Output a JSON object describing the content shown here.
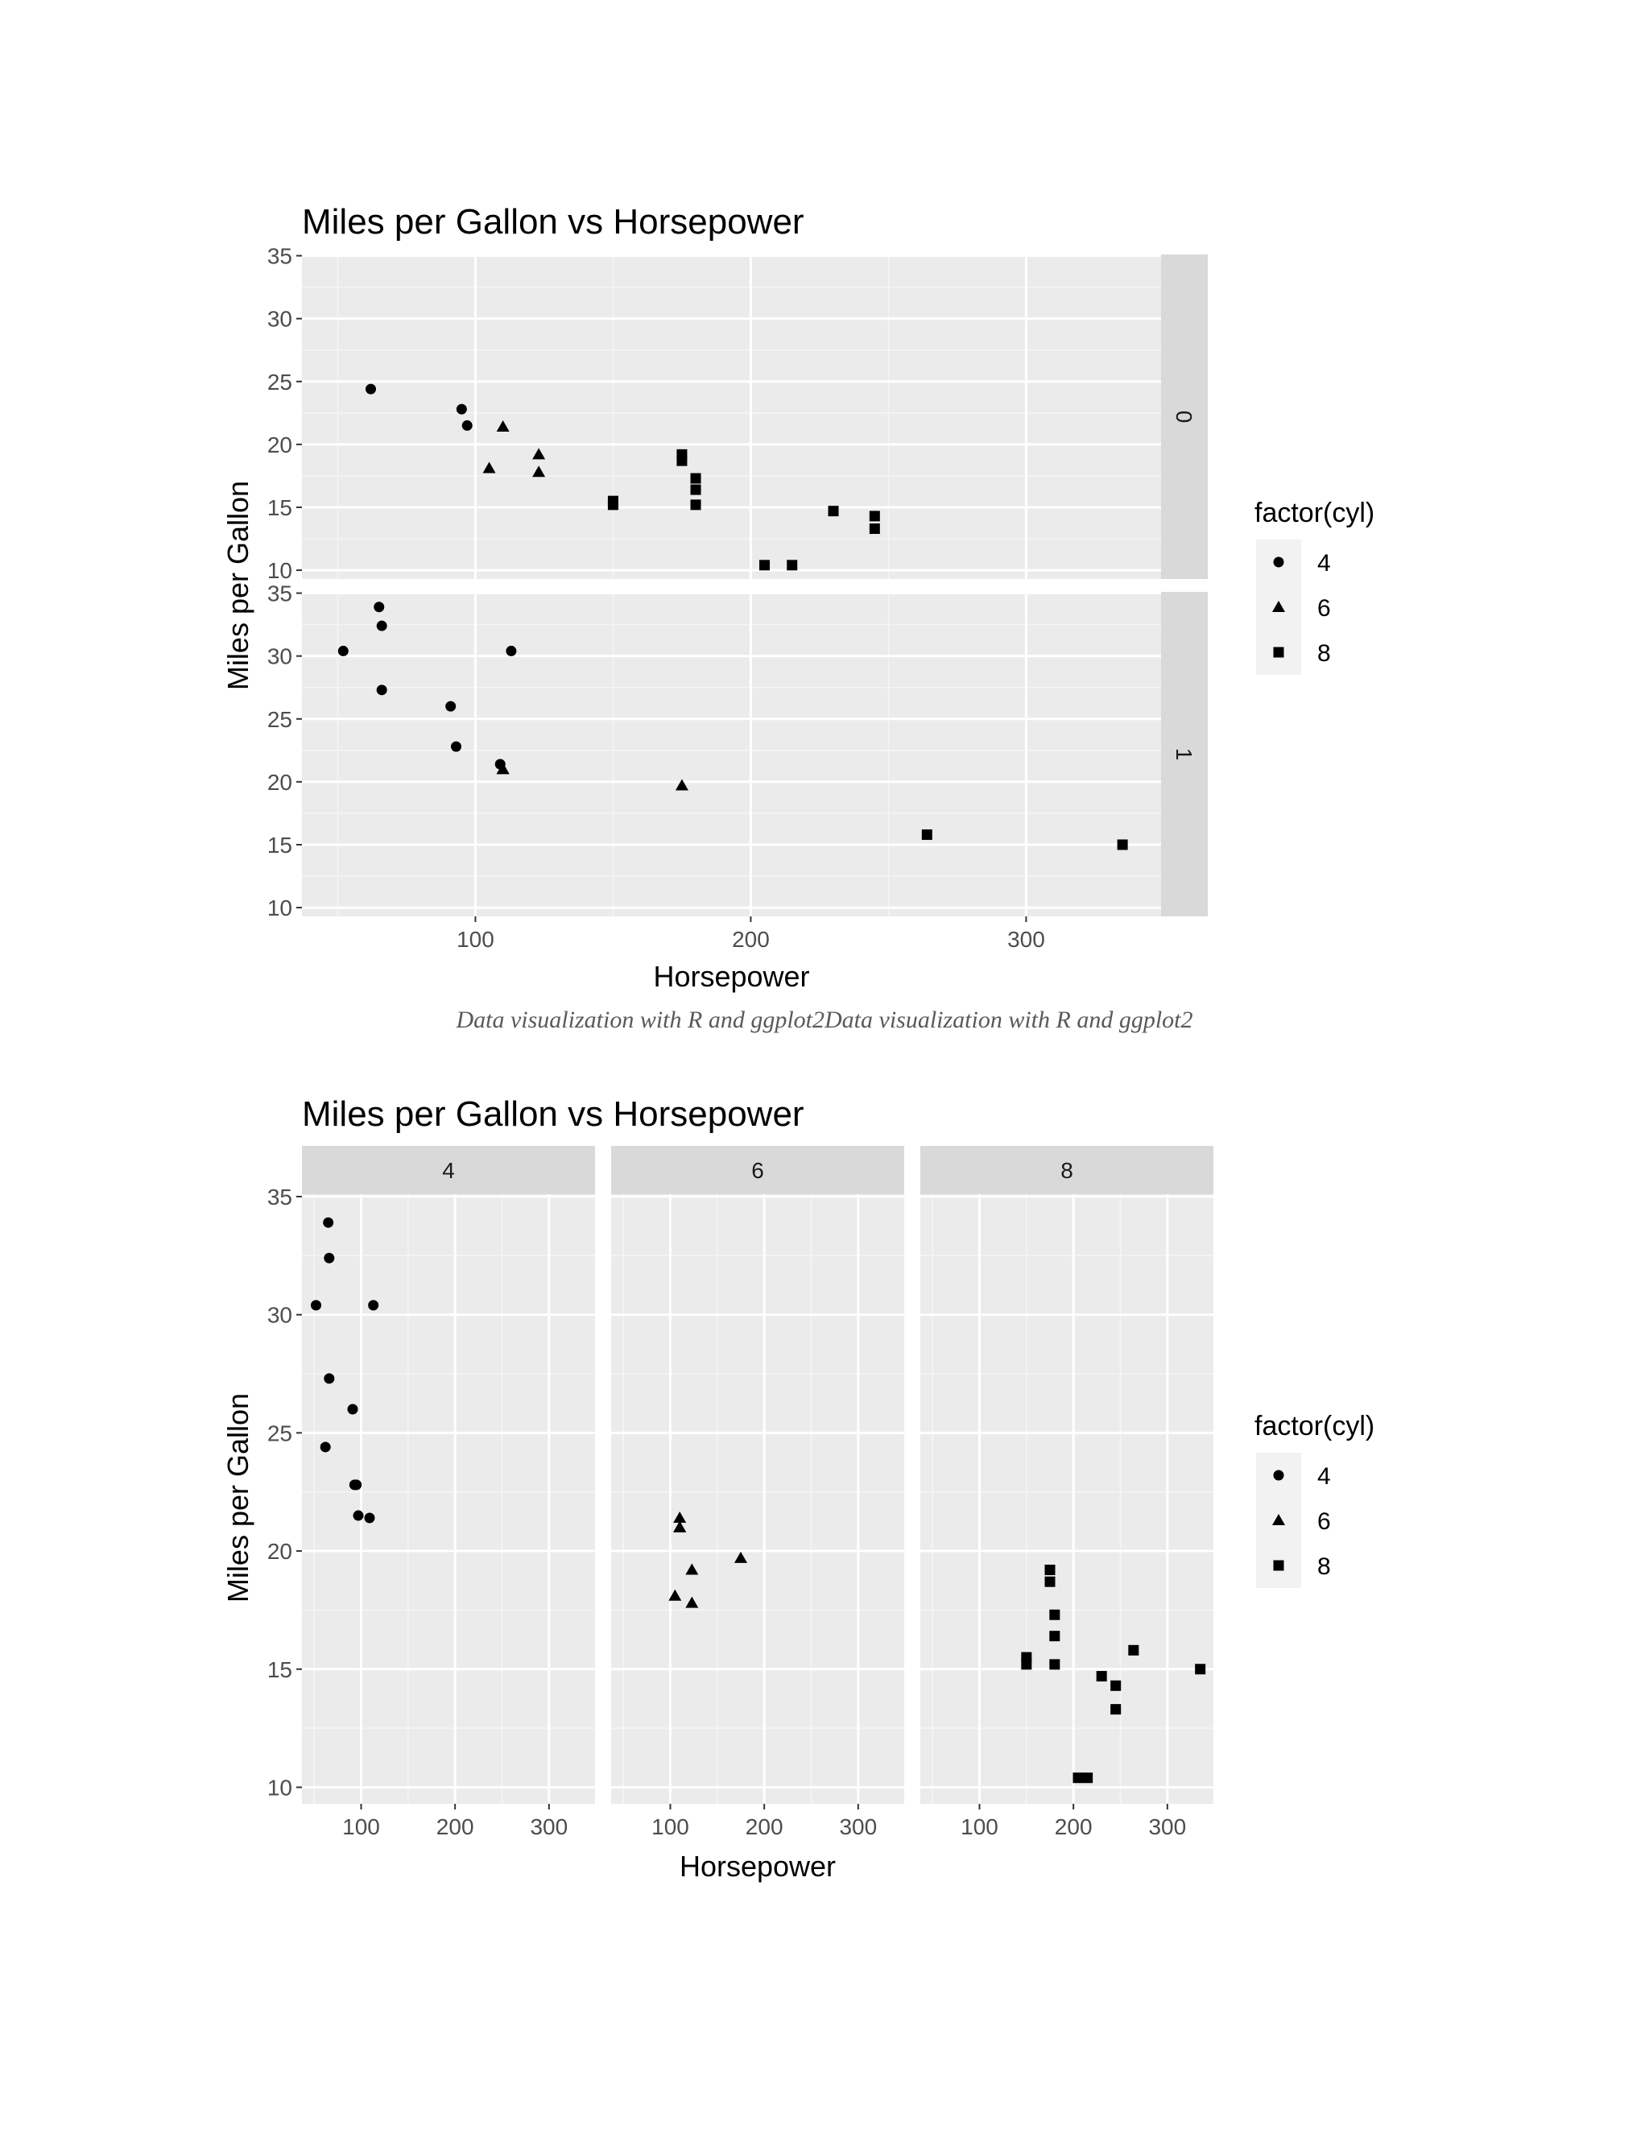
{
  "caption": "Data visualization with R and ggplot2Data visualization with R and ggplot2",
  "chart_data": [
    {
      "type": "scatter",
      "title": "Miles per Gallon vs Horsepower",
      "xlabel": "Horsepower",
      "ylabel": "Miles per Gallon",
      "facet_by": "am",
      "facet_direction": "rows",
      "facets": [
        "0",
        "1"
      ],
      "xlim": [
        37,
        349
      ],
      "ylim": [
        9.3,
        35.1
      ],
      "xticks": [
        100,
        200,
        300
      ],
      "yticks": [
        10,
        15,
        20,
        25,
        30,
        35
      ],
      "grid": true,
      "legend": {
        "title": "factor(cyl)",
        "position": "right",
        "entries": [
          {
            "label": "4",
            "shape": "circle"
          },
          {
            "label": "6",
            "shape": "triangle"
          },
          {
            "label": "8",
            "shape": "square"
          }
        ]
      },
      "points": [
        {
          "facet": "0",
          "hp": 62,
          "mpg": 24.4,
          "cyl": "4"
        },
        {
          "facet": "0",
          "hp": 95,
          "mpg": 22.8,
          "cyl": "4"
        },
        {
          "facet": "0",
          "hp": 97,
          "mpg": 21.5,
          "cyl": "4"
        },
        {
          "facet": "0",
          "hp": 110,
          "mpg": 21.4,
          "cyl": "6"
        },
        {
          "facet": "0",
          "hp": 105,
          "mpg": 18.1,
          "cyl": "6"
        },
        {
          "facet": "0",
          "hp": 123,
          "mpg": 19.2,
          "cyl": "6"
        },
        {
          "facet": "0",
          "hp": 123,
          "mpg": 17.8,
          "cyl": "6"
        },
        {
          "facet": "0",
          "hp": 175,
          "mpg": 18.7,
          "cyl": "8"
        },
        {
          "facet": "0",
          "hp": 245,
          "mpg": 14.3,
          "cyl": "8"
        },
        {
          "facet": "0",
          "hp": 180,
          "mpg": 16.4,
          "cyl": "8"
        },
        {
          "facet": "0",
          "hp": 180,
          "mpg": 17.3,
          "cyl": "8"
        },
        {
          "facet": "0",
          "hp": 180,
          "mpg": 15.2,
          "cyl": "8"
        },
        {
          "facet": "0",
          "hp": 205,
          "mpg": 10.4,
          "cyl": "8"
        },
        {
          "facet": "0",
          "hp": 215,
          "mpg": 10.4,
          "cyl": "8"
        },
        {
          "facet": "0",
          "hp": 230,
          "mpg": 14.7,
          "cyl": "8"
        },
        {
          "facet": "0",
          "hp": 150,
          "mpg": 15.5,
          "cyl": "8"
        },
        {
          "facet": "0",
          "hp": 150,
          "mpg": 15.2,
          "cyl": "8"
        },
        {
          "facet": "0",
          "hp": 245,
          "mpg": 13.3,
          "cyl": "8"
        },
        {
          "facet": "0",
          "hp": 175,
          "mpg": 19.2,
          "cyl": "8"
        },
        {
          "facet": "1",
          "hp": 93,
          "mpg": 22.8,
          "cyl": "4"
        },
        {
          "facet": "1",
          "hp": 66,
          "mpg": 32.4,
          "cyl": "4"
        },
        {
          "facet": "1",
          "hp": 52,
          "mpg": 30.4,
          "cyl": "4"
        },
        {
          "facet": "1",
          "hp": 65,
          "mpg": 33.9,
          "cyl": "4"
        },
        {
          "facet": "1",
          "hp": 66,
          "mpg": 27.3,
          "cyl": "4"
        },
        {
          "facet": "1",
          "hp": 91,
          "mpg": 26.0,
          "cyl": "4"
        },
        {
          "facet": "1",
          "hp": 113,
          "mpg": 30.4,
          "cyl": "4"
        },
        {
          "facet": "1",
          "hp": 109,
          "mpg": 21.4,
          "cyl": "4"
        },
        {
          "facet": "1",
          "hp": 110,
          "mpg": 21.0,
          "cyl": "6"
        },
        {
          "facet": "1",
          "hp": 110,
          "mpg": 21.0,
          "cyl": "6"
        },
        {
          "facet": "1",
          "hp": 175,
          "mpg": 19.7,
          "cyl": "6"
        },
        {
          "facet": "1",
          "hp": 264,
          "mpg": 15.8,
          "cyl": "8"
        },
        {
          "facet": "1",
          "hp": 335,
          "mpg": 15.0,
          "cyl": "8"
        }
      ]
    },
    {
      "type": "scatter",
      "title": "Miles per Gallon vs Horsepower",
      "xlabel": "Horsepower",
      "ylabel": "Miles per Gallon",
      "facet_by": "cyl",
      "facet_direction": "columns",
      "facets": [
        "4",
        "6",
        "8"
      ],
      "xlim": [
        37,
        349
      ],
      "ylim": [
        9.3,
        35.1
      ],
      "xticks": [
        100,
        200,
        300
      ],
      "yticks": [
        10,
        15,
        20,
        25,
        30,
        35
      ],
      "grid": true,
      "legend": {
        "title": "factor(cyl)",
        "position": "right",
        "entries": [
          {
            "label": "4",
            "shape": "circle"
          },
          {
            "label": "6",
            "shape": "triangle"
          },
          {
            "label": "8",
            "shape": "square"
          }
        ]
      },
      "points": [
        {
          "facet": "4",
          "hp": 93,
          "mpg": 22.8,
          "cyl": "4"
        },
        {
          "facet": "4",
          "hp": 62,
          "mpg": 24.4,
          "cyl": "4"
        },
        {
          "facet": "4",
          "hp": 95,
          "mpg": 22.8,
          "cyl": "4"
        },
        {
          "facet": "4",
          "hp": 66,
          "mpg": 32.4,
          "cyl": "4"
        },
        {
          "facet": "4",
          "hp": 52,
          "mpg": 30.4,
          "cyl": "4"
        },
        {
          "facet": "4",
          "hp": 65,
          "mpg": 33.9,
          "cyl": "4"
        },
        {
          "facet": "4",
          "hp": 97,
          "mpg": 21.5,
          "cyl": "4"
        },
        {
          "facet": "4",
          "hp": 66,
          "mpg": 27.3,
          "cyl": "4"
        },
        {
          "facet": "4",
          "hp": 91,
          "mpg": 26.0,
          "cyl": "4"
        },
        {
          "facet": "4",
          "hp": 113,
          "mpg": 30.4,
          "cyl": "4"
        },
        {
          "facet": "4",
          "hp": 109,
          "mpg": 21.4,
          "cyl": "4"
        },
        {
          "facet": "6",
          "hp": 110,
          "mpg": 21.0,
          "cyl": "6"
        },
        {
          "facet": "6",
          "hp": 110,
          "mpg": 21.0,
          "cyl": "6"
        },
        {
          "facet": "6",
          "hp": 110,
          "mpg": 21.4,
          "cyl": "6"
        },
        {
          "facet": "6",
          "hp": 105,
          "mpg": 18.1,
          "cyl": "6"
        },
        {
          "facet": "6",
          "hp": 123,
          "mpg": 19.2,
          "cyl": "6"
        },
        {
          "facet": "6",
          "hp": 123,
          "mpg": 17.8,
          "cyl": "6"
        },
        {
          "facet": "6",
          "hp": 175,
          "mpg": 19.7,
          "cyl": "6"
        },
        {
          "facet": "8",
          "hp": 175,
          "mpg": 18.7,
          "cyl": "8"
        },
        {
          "facet": "8",
          "hp": 245,
          "mpg": 14.3,
          "cyl": "8"
        },
        {
          "facet": "8",
          "hp": 180,
          "mpg": 16.4,
          "cyl": "8"
        },
        {
          "facet": "8",
          "hp": 180,
          "mpg": 17.3,
          "cyl": "8"
        },
        {
          "facet": "8",
          "hp": 180,
          "mpg": 15.2,
          "cyl": "8"
        },
        {
          "facet": "8",
          "hp": 205,
          "mpg": 10.4,
          "cyl": "8"
        },
        {
          "facet": "8",
          "hp": 215,
          "mpg": 10.4,
          "cyl": "8"
        },
        {
          "facet": "8",
          "hp": 230,
          "mpg": 14.7,
          "cyl": "8"
        },
        {
          "facet": "8",
          "hp": 150,
          "mpg": 15.5,
          "cyl": "8"
        },
        {
          "facet": "8",
          "hp": 150,
          "mpg": 15.2,
          "cyl": "8"
        },
        {
          "facet": "8",
          "hp": 245,
          "mpg": 13.3,
          "cyl": "8"
        },
        {
          "facet": "8",
          "hp": 175,
          "mpg": 19.2,
          "cyl": "8"
        },
        {
          "facet": "8",
          "hp": 264,
          "mpg": 15.8,
          "cyl": "8"
        },
        {
          "facet": "8",
          "hp": 335,
          "mpg": 15.0,
          "cyl": "8"
        }
      ]
    }
  ]
}
